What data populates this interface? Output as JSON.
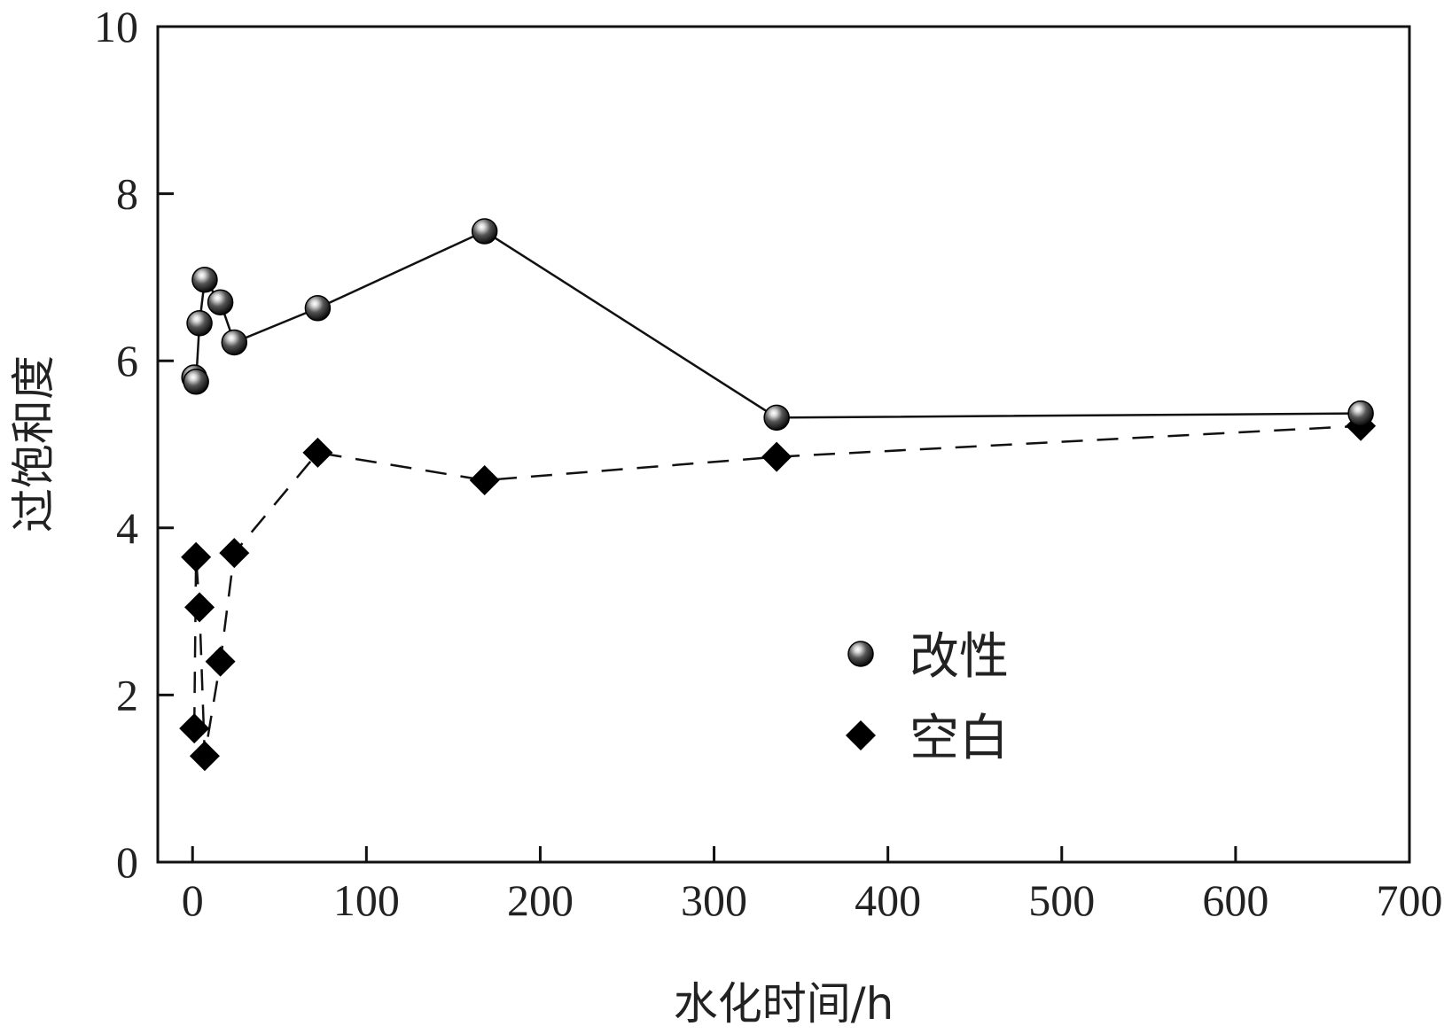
{
  "chart_data": {
    "type": "line",
    "xlabel": "水化时间/h",
    "ylabel": "过饱和度",
    "xlim": [
      -20,
      700
    ],
    "ylim": [
      0,
      10
    ],
    "xticks": [
      0,
      100,
      200,
      300,
      400,
      500,
      600,
      700
    ],
    "yticks": [
      0,
      2,
      4,
      6,
      8,
      10
    ],
    "grid": false,
    "legend_position": "center-right",
    "series": [
      {
        "name": "改性",
        "marker": "sphere",
        "line": "solid",
        "x": [
          1,
          2,
          4,
          7,
          16,
          24,
          72,
          168,
          336,
          672
        ],
        "y": [
          5.8,
          5.75,
          6.45,
          6.97,
          6.7,
          6.22,
          6.63,
          7.55,
          5.32,
          5.37
        ]
      },
      {
        "name": "空白",
        "marker": "diamond",
        "line": "dashed",
        "x": [
          1,
          2,
          4,
          7,
          16,
          24,
          72,
          168,
          336,
          672
        ],
        "y": [
          1.6,
          3.65,
          3.05,
          1.27,
          2.4,
          3.7,
          4.9,
          4.57,
          4.85,
          5.22
        ]
      }
    ]
  }
}
